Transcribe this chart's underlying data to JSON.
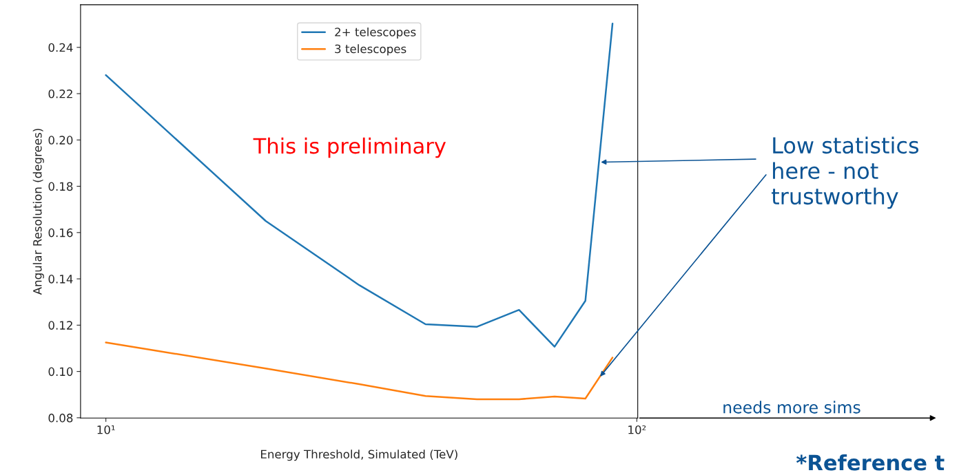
{
  "chart_data": {
    "type": "line",
    "xlabel": "Energy Threshold, Simulated (TeV)",
    "ylabel": "Angular Resolution (degrees)",
    "log": "x",
    "x": [
      10,
      20,
      30,
      40,
      50,
      60,
      70,
      80,
      90
    ],
    "series": [
      {
        "name": "2+ telescopes",
        "color": "#1f77b4",
        "values": [
          0.228,
          0.165,
          0.1373,
          0.1204,
          0.1193,
          0.1266,
          0.1107,
          0.1305,
          0.2503
        ]
      },
      {
        "name": "3 telescopes",
        "color": "#ff7f0e",
        "values": [
          0.1125,
          0.1013,
          0.0945,
          0.0894,
          0.088,
          0.088,
          0.0892,
          0.0883,
          0.106
        ]
      }
    ],
    "xlim": [
      8.96,
      100.4
    ],
    "xticks": [
      {
        "value": 10,
        "label": "10¹"
      },
      {
        "value": 100,
        "label": "10²"
      }
    ],
    "ylim": [
      0.0799,
      0.2584
    ],
    "yticks": [
      {
        "value": 0.08,
        "label": "0.08"
      },
      {
        "value": 0.1,
        "label": "0.10"
      },
      {
        "value": 0.12,
        "label": "0.12"
      },
      {
        "value": 0.14,
        "label": "0.14"
      },
      {
        "value": 0.16,
        "label": "0.16"
      },
      {
        "value": 0.18,
        "label": "0.18"
      },
      {
        "value": 0.2,
        "label": "0.20"
      },
      {
        "value": 0.22,
        "label": "0.22"
      },
      {
        "value": 0.24,
        "label": "0.24"
      }
    ],
    "legend": "top center",
    "grid": false,
    "marker": "none",
    "line_style": "solid",
    "annotations": [
      "This is preliminary",
      {
        "text": "Low statistics\nhere - not\ntrustworthy",
        "x": 84.85,
        "y": 0.1904
      },
      "needs more sims",
      "*Reference t"
    ]
  }
}
